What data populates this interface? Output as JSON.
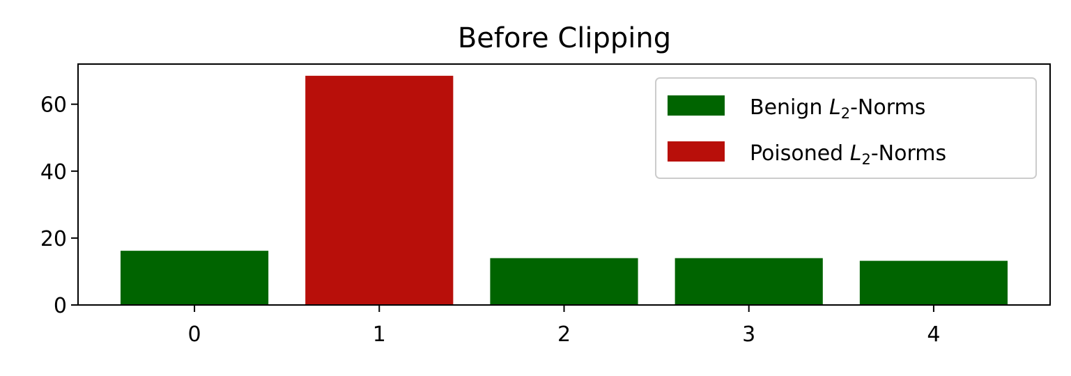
{
  "chart_data": {
    "type": "bar",
    "title": "Before Clipping",
    "xlabel": "",
    "ylabel": "",
    "categories": [
      "0",
      "1",
      "2",
      "3",
      "4"
    ],
    "series": [
      {
        "name": "Benign L2-Norms",
        "legend_prefix": "Benign ",
        "legend_suffix": "-Norms",
        "color": "#006400",
        "values": [
          16.2,
          null,
          14.0,
          14.0,
          13.2
        ]
      },
      {
        "name": "Poisoned L2-Norms",
        "legend_prefix": "Poisoned ",
        "legend_suffix": "-Norms",
        "color": "#b80f0a",
        "values": [
          null,
          68.5,
          null,
          null,
          null
        ]
      }
    ],
    "legend_symbol": {
      "base": "L",
      "sub": "2"
    },
    "y_ticks": [
      0,
      20,
      40,
      60
    ],
    "x_ticks": [
      0,
      1,
      2,
      3,
      4
    ],
    "xlim": [
      -0.63,
      4.63
    ],
    "ylim": [
      0,
      72
    ],
    "grid": false,
    "legend_position": "top-right"
  }
}
